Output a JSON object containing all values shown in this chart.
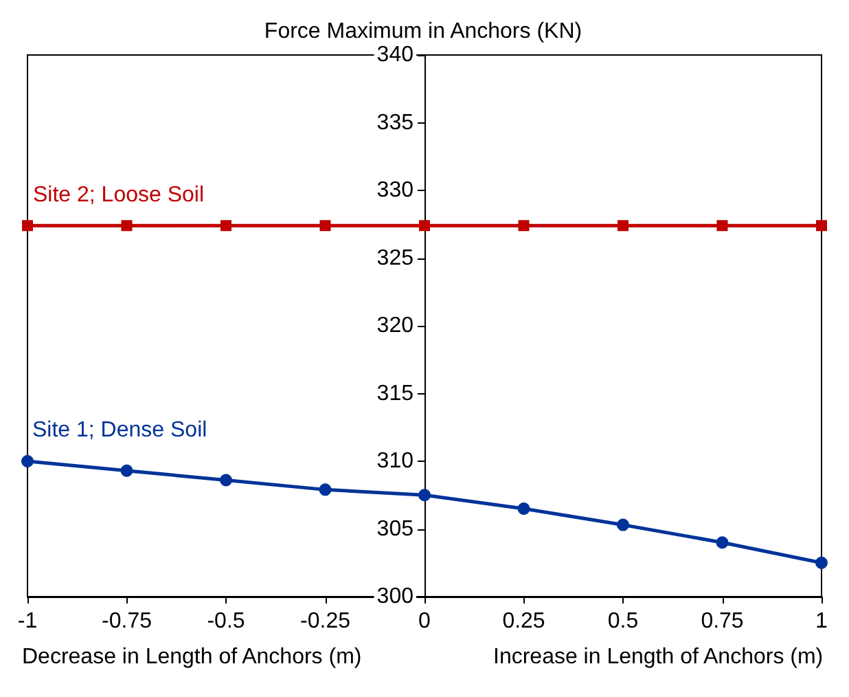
{
  "chart_data": {
    "type": "line",
    "title": "Force Maximum in Anchors (KN)",
    "xlabel": "Decrease in Length of Anchors (m)",
    "annotations": [
      "Increase in Length of Anchors (m)"
    ],
    "x": [
      -1,
      -0.75,
      -0.5,
      -0.25,
      0,
      0.25,
      0.5,
      0.75,
      1
    ],
    "series": [
      {
        "name": "Site 2; Loose Soil",
        "color": "#c00000",
        "marker": "square",
        "values": [
          327.4,
          327.4,
          327.4,
          327.4,
          327.4,
          327.4,
          327.4,
          327.4,
          327.4
        ]
      },
      {
        "name": "Site 1; Dense Soil",
        "color": "#003399",
        "marker": "circle",
        "values": [
          310,
          309.3,
          308.6,
          307.9,
          307.5,
          306.5,
          305.3,
          304,
          302.5
        ]
      }
    ],
    "xlim": [
      -1,
      1
    ],
    "xticks": [
      -1,
      -0.75,
      -0.5,
      -0.25,
      0,
      0.25,
      0.5,
      0.75,
      1
    ],
    "ylim": [
      300,
      340
    ],
    "yticks": [
      300,
      305,
      310,
      315,
      320,
      325,
      330,
      335,
      340
    ],
    "legend": false,
    "line_style": "solid"
  }
}
